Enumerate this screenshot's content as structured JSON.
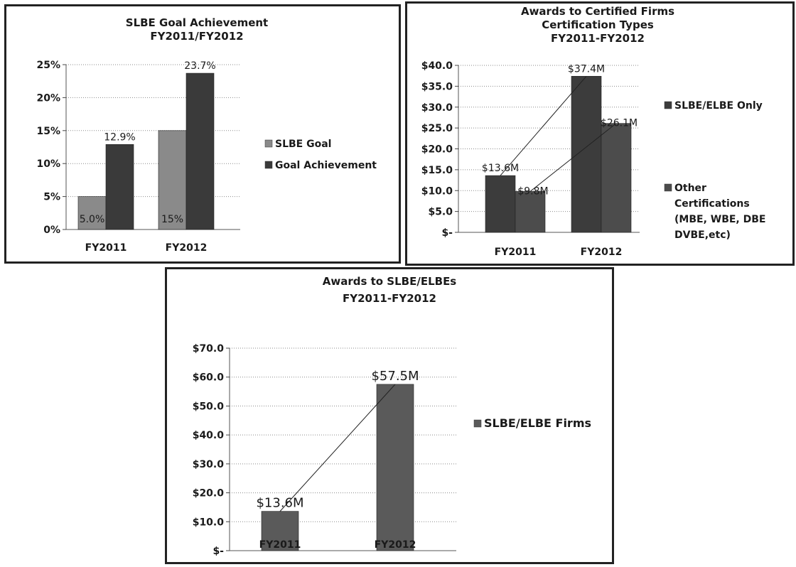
{
  "chart_data": [
    {
      "type": "bar",
      "title": [
        "SLBE Goal Achievement",
        "FY2011/FY2012"
      ],
      "categories": [
        "FY2011",
        "FY2012"
      ],
      "series": [
        {
          "name": "SLBE Goal",
          "values": [
            5,
            15
          ],
          "labels": [
            "5.0%",
            "15%"
          ]
        },
        {
          "name": "Goal Achievement",
          "values": [
            12.9,
            23.7
          ],
          "labels": [
            "12.9%",
            "23.7%"
          ]
        }
      ],
      "yticks": [
        "0%",
        "5%",
        "10%",
        "15%",
        "20%",
        "25%"
      ],
      "ylim": [
        0,
        25
      ],
      "legend": "right",
      "grid": true,
      "colors": [
        "#8a8a8a",
        "#3a3a3a"
      ]
    },
    {
      "type": "bar",
      "title": [
        "Awards to Certified Firms",
        "Certification Types",
        "FY2011-FY2012"
      ],
      "categories": [
        "FY2011",
        "FY2012"
      ],
      "series": [
        {
          "name": "SLBE/ELBE Only",
          "values": [
            13.6,
            37.4
          ],
          "labels": [
            "$13.6M",
            "$37.4M"
          ]
        },
        {
          "name": "Other Certifications (MBE, WBE, DBE DVBE,etc)",
          "legend_lines": [
            "Other",
            "Certifications",
            "(MBE, WBE, DBE",
            "DVBE,etc)"
          ],
          "values": [
            9.8,
            26.1
          ],
          "labels": [
            "$9.8M",
            "$26.1M"
          ]
        }
      ],
      "yticks": [
        "$-",
        "$5.0",
        "$10.0",
        "$15.0",
        "$20.0",
        "$25.0",
        "$30.0",
        "$35.0",
        "$40.0"
      ],
      "ylim": [
        0,
        40
      ],
      "legend": "right",
      "grid": true,
      "colors": [
        "#3c3c3c",
        "#4c4c4c"
      ]
    },
    {
      "type": "bar",
      "title": [
        "Awards to SLBE/ELBEs",
        "FY2011-FY2012"
      ],
      "categories": [
        "FY2011",
        "FY2012"
      ],
      "series": [
        {
          "name": "SLBE/ELBE Firms",
          "values": [
            13.6,
            57.5
          ],
          "labels": [
            "$13.6M",
            "$57.5M"
          ]
        }
      ],
      "yticks": [
        "$-",
        "$10.0",
        "$20.0",
        "$30.0",
        "$40.0",
        "$50.0",
        "$60.0",
        "$70.0"
      ],
      "ylim": [
        0,
        70
      ],
      "legend": "right",
      "grid": true,
      "colors": [
        "#5a5a5a"
      ]
    }
  ]
}
